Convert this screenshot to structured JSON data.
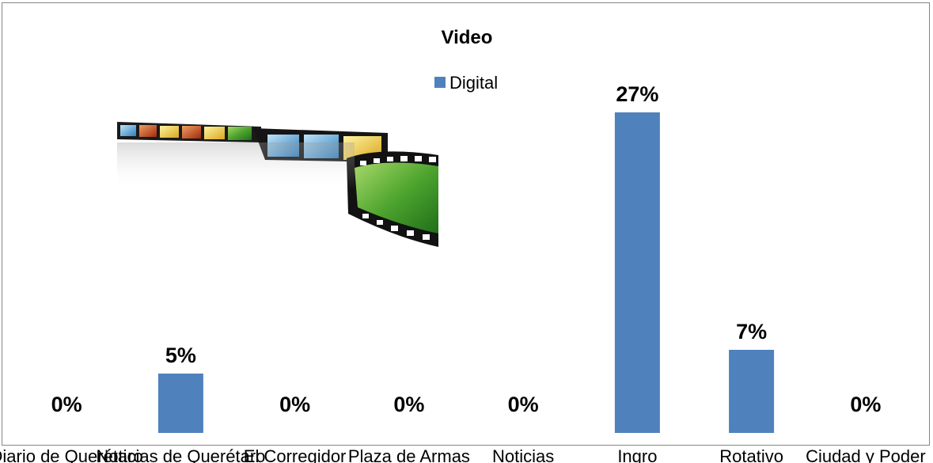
{
  "chart_data": {
    "type": "bar",
    "title": "Video",
    "categories": [
      "Diario de Querétaro",
      "Noticias de Querétaro",
      "El Corregidor",
      "Plaza de Armas",
      "Noticias",
      "Ingro",
      "Rotativo",
      "Ciudad y Poder"
    ],
    "series": [
      {
        "name": "Digital",
        "color": "#4F81BD",
        "values": [
          0,
          5,
          0,
          0,
          0,
          27,
          7,
          0
        ]
      }
    ],
    "data_labels": [
      "0%",
      "5%",
      "0%",
      "0%",
      "0%",
      "27%",
      "7%",
      "0%"
    ],
    "value_unit": "%",
    "ylim": [
      0,
      30
    ],
    "grid": false,
    "legend_position": "top"
  },
  "illustration": "film-strip-image"
}
